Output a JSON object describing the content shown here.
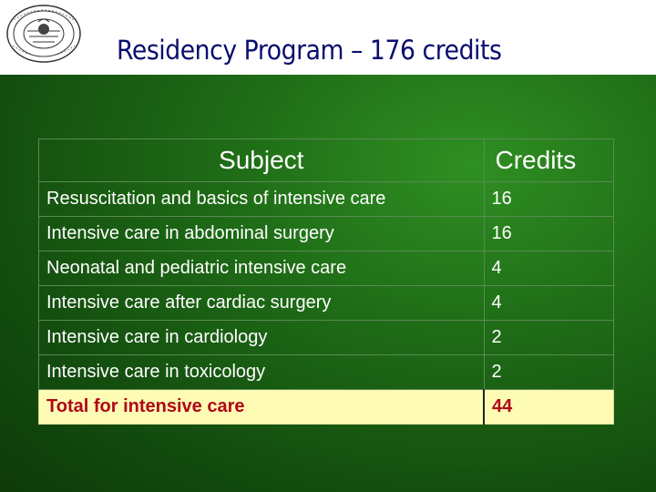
{
  "header": {
    "title": "Residency Program – 176 credits",
    "logo_icon": "university-seal-icon"
  },
  "table": {
    "headers": {
      "subject": "Subject",
      "credits": "Credits"
    },
    "rows": [
      {
        "subject": "Resuscitation and basics of intensive care",
        "credits": "16"
      },
      {
        "subject": "Intensive care in abdominal surgery",
        "credits": "16"
      },
      {
        "subject": "Neonatal and pediatric intensive care",
        "credits": "4"
      },
      {
        "subject": "Intensive care after cardiac surgery",
        "credits": "4"
      },
      {
        "subject": "Intensive care in cardiology",
        "credits": "2"
      },
      {
        "subject": "Intensive care in toxicology",
        "credits": "2"
      }
    ],
    "total": {
      "subject": "Total for intensive care",
      "credits": "44"
    }
  },
  "colors": {
    "background": "#1f6d17",
    "title": "#0a0e6e",
    "total_row_bg": "#fefcb4",
    "total_row_text": "#b0061a"
  }
}
